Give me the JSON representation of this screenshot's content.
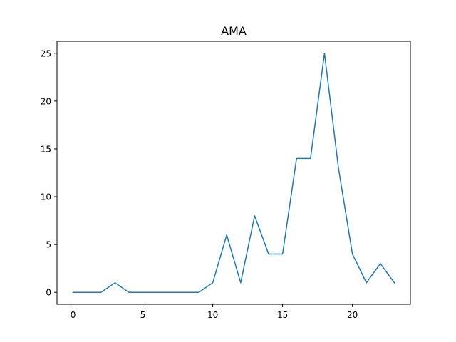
{
  "chart_data": {
    "type": "line",
    "title": "AMA",
    "xlabel": "",
    "ylabel": "",
    "x": [
      0,
      1,
      2,
      3,
      4,
      5,
      6,
      7,
      8,
      9,
      10,
      11,
      12,
      13,
      14,
      15,
      16,
      17,
      18,
      19,
      20,
      21,
      22,
      23
    ],
    "series": [
      {
        "values": [
          0,
          0,
          0,
          1,
          0,
          0,
          0,
          0,
          0,
          0,
          1,
          6,
          1,
          8,
          4,
          4,
          14,
          14,
          25,
          13,
          4,
          1,
          3,
          1
        ],
        "color": "#1f77b4"
      }
    ],
    "xlim": [
      -1.15,
      24.15
    ],
    "ylim": [
      -1.25,
      26.25
    ],
    "xticks": [
      0,
      5,
      10,
      15,
      20
    ],
    "yticks": [
      0,
      5,
      10,
      15,
      20,
      25
    ],
    "grid": false,
    "legend": "none"
  }
}
